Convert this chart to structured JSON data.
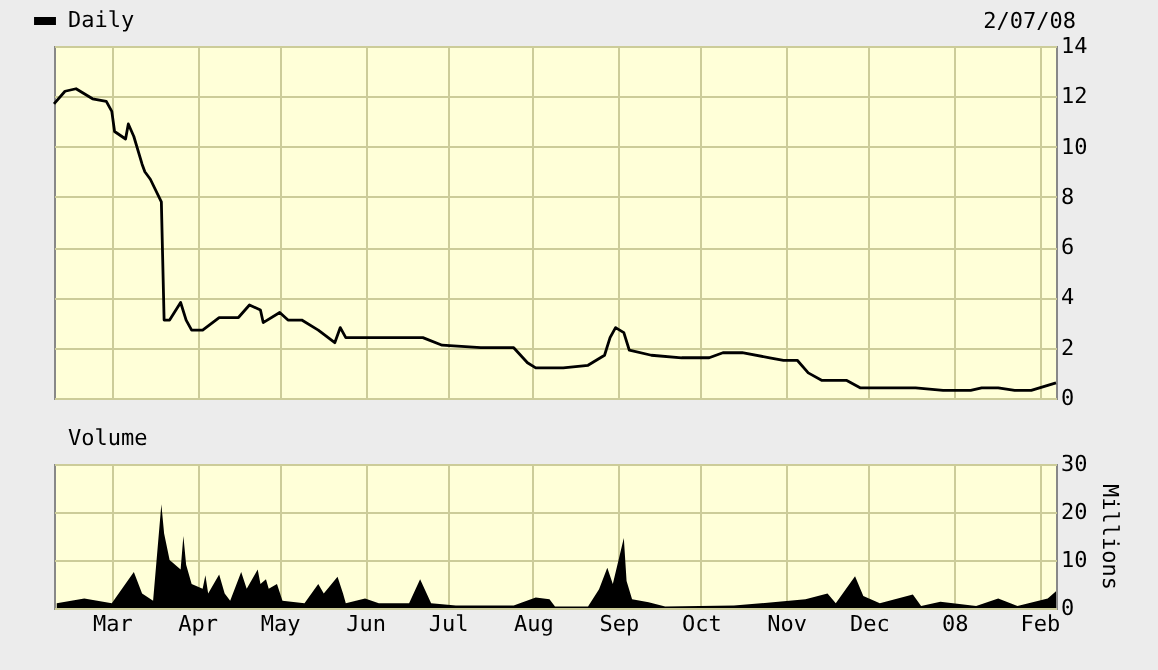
{
  "chart_data": [
    {
      "type": "line",
      "legend": "top left",
      "grid": true,
      "tick_labels": "y",
      "annotations": [
        "2/07/08"
      ],
      "xlim": [
        "2007-02-08",
        "2008-02-07"
      ],
      "xticks": [
        {
          "value": "2007-03-01",
          "label": null
        },
        {
          "value": "2007-04-01",
          "label": null
        },
        {
          "value": "2007-05-01",
          "label": null
        },
        {
          "value": "2007-06-01",
          "label": null
        },
        {
          "value": "2007-07-01",
          "label": null
        },
        {
          "value": "2007-08-01",
          "label": null
        },
        {
          "value": "2007-09-01",
          "label": null
        },
        {
          "value": "2007-10-01",
          "label": null
        },
        {
          "value": "2007-11-01",
          "label": null
        },
        {
          "value": "2007-12-01",
          "label": null
        },
        {
          "value": "2008-01-01",
          "label": null
        },
        {
          "value": "2008-02-01",
          "label": null
        }
      ],
      "ylim": [
        0,
        14
      ],
      "yticks": [
        0,
        2,
        4,
        6,
        8,
        10,
        12,
        14
      ],
      "series": [
        {
          "name": "Daily",
          "color": "#000000",
          "x": [
            "2007-02-08",
            "2007-02-12",
            "2007-02-16",
            "2007-02-22",
            "2007-02-27",
            "2007-03-01",
            "2007-03-02",
            "2007-03-06",
            "2007-03-07",
            "2007-03-09",
            "2007-03-12",
            "2007-03-13",
            "2007-03-15",
            "2007-03-19",
            "2007-03-20",
            "2007-03-22",
            "2007-03-26",
            "2007-03-28",
            "2007-03-30",
            "2007-04-03",
            "2007-04-09",
            "2007-04-16",
            "2007-04-20",
            "2007-04-24",
            "2007-04-25",
            "2007-05-01",
            "2007-05-04",
            "2007-05-09",
            "2007-05-15",
            "2007-05-21",
            "2007-05-23",
            "2007-05-25",
            "2007-06-04",
            "2007-06-15",
            "2007-06-22",
            "2007-06-29",
            "2007-07-13",
            "2007-07-25",
            "2007-07-30",
            "2007-08-02",
            "2007-08-12",
            "2007-08-21",
            "2007-08-27",
            "2007-08-29",
            "2007-08-31",
            "2007-09-03",
            "2007-09-05",
            "2007-09-13",
            "2007-09-24",
            "2007-10-04",
            "2007-10-09",
            "2007-10-16",
            "2007-10-26",
            "2007-10-31",
            "2007-11-05",
            "2007-11-09",
            "2007-11-14",
            "2007-11-22",
            "2007-11-23",
            "2007-11-28",
            "2007-12-10",
            "2007-12-18",
            "2007-12-28",
            "2008-01-07",
            "2008-01-11",
            "2008-01-17",
            "2008-01-23",
            "2008-01-29",
            "2008-02-04",
            "2008-02-07"
          ],
          "values": [
            11.7,
            12.2,
            12.3,
            11.9,
            11.8,
            11.4,
            10.6,
            10.3,
            10.9,
            10.4,
            9.3,
            9.0,
            8.7,
            7.8,
            3.1,
            3.1,
            3.8,
            3.1,
            2.7,
            2.7,
            3.2,
            3.2,
            3.7,
            3.5,
            3.0,
            3.4,
            3.1,
            3.1,
            2.7,
            2.2,
            2.8,
            2.4,
            2.4,
            2.4,
            2.4,
            2.1,
            2.0,
            2.0,
            1.4,
            1.2,
            1.2,
            1.3,
            1.7,
            2.4,
            2.8,
            2.6,
            1.9,
            1.7,
            1.6,
            1.6,
            1.8,
            1.8,
            1.6,
            1.5,
            1.5,
            1.0,
            0.7,
            0.7,
            0.7,
            0.4,
            0.4,
            0.4,
            0.3,
            0.3,
            0.4,
            0.4,
            0.3,
            0.3,
            0.5,
            0.6
          ]
        }
      ]
    },
    {
      "type": "area",
      "legend": "top left",
      "grid": true,
      "ylabel": "Millions",
      "xlim": [
        "2007-02-08",
        "2008-02-07"
      ],
      "xticks": [
        {
          "value": "2007-03-01",
          "label": "Mar"
        },
        {
          "value": "2007-04-01",
          "label": "Apr"
        },
        {
          "value": "2007-05-01",
          "label": "May"
        },
        {
          "value": "2007-06-01",
          "label": "Jun"
        },
        {
          "value": "2007-07-01",
          "label": "Jul"
        },
        {
          "value": "2007-08-01",
          "label": "Aug"
        },
        {
          "value": "2007-09-01",
          "label": "Sep"
        },
        {
          "value": "2007-10-01",
          "label": "Oct"
        },
        {
          "value": "2007-11-01",
          "label": "Nov"
        },
        {
          "value": "2007-12-01",
          "label": "Dec"
        },
        {
          "value": "2008-01-01",
          "label": "08"
        },
        {
          "value": "2008-02-01",
          "label": "Feb"
        }
      ],
      "ylim": [
        0,
        30
      ],
      "yticks": [
        0,
        10,
        20,
        30
      ],
      "series": [
        {
          "name": "Volume",
          "color": "#000000",
          "x": [
            "2007-02-09",
            "2007-02-19",
            "2007-03-01",
            "2007-03-09",
            "2007-03-12",
            "2007-03-16",
            "2007-03-19",
            "2007-03-20",
            "2007-03-22",
            "2007-03-26",
            "2007-03-27",
            "2007-03-28",
            "2007-03-30",
            "2007-04-03",
            "2007-04-04",
            "2007-04-05",
            "2007-04-09",
            "2007-04-11",
            "2007-04-13",
            "2007-04-17",
            "2007-04-19",
            "2007-04-23",
            "2007-04-24",
            "2007-04-26",
            "2007-04-27",
            "2007-04-30",
            "2007-05-02",
            "2007-05-10",
            "2007-05-15",
            "2007-05-17",
            "2007-05-22",
            "2007-05-24",
            "2007-05-25",
            "2007-06-01",
            "2007-06-06",
            "2007-06-17",
            "2007-06-21",
            "2007-06-25",
            "2007-07-04",
            "2007-07-25",
            "2007-08-02",
            "2007-08-07",
            "2007-08-09",
            "2007-08-21",
            "2007-08-25",
            "2007-08-28",
            "2007-08-30",
            "2007-09-03",
            "2007-09-04",
            "2007-09-06",
            "2007-09-12",
            "2007-09-18",
            "2007-10-13",
            "2007-11-08",
            "2007-11-16",
            "2007-11-19",
            "2007-11-26",
            "2007-11-29",
            "2007-12-05",
            "2007-12-17",
            "2007-12-20",
            "2007-12-27",
            "2008-01-09",
            "2008-01-17",
            "2008-01-24",
            "2008-02-04",
            "2008-02-07"
          ],
          "values": [
            1,
            2,
            1,
            7.5,
            3,
            1.5,
            21.6,
            15.5,
            10,
            8,
            15,
            9,
            5,
            4,
            6.8,
            3,
            7,
            3,
            1.5,
            7.5,
            4,
            8,
            5,
            6,
            4,
            5,
            1.5,
            1,
            5,
            3,
            6.5,
            3,
            1,
            2,
            1,
            1,
            6,
            1,
            0.5,
            0.5,
            2.2,
            1.8,
            0.3,
            0.3,
            3.9,
            8.4,
            5,
            14.6,
            5.6,
            1.8,
            1.2,
            0.3,
            0.5,
            1.8,
            3,
            1,
            6.6,
            2.5,
            1,
            2.8,
            0.4,
            1.3,
            0.4,
            2,
            0.4,
            2,
            3.5
          ]
        }
      ]
    }
  ]
}
